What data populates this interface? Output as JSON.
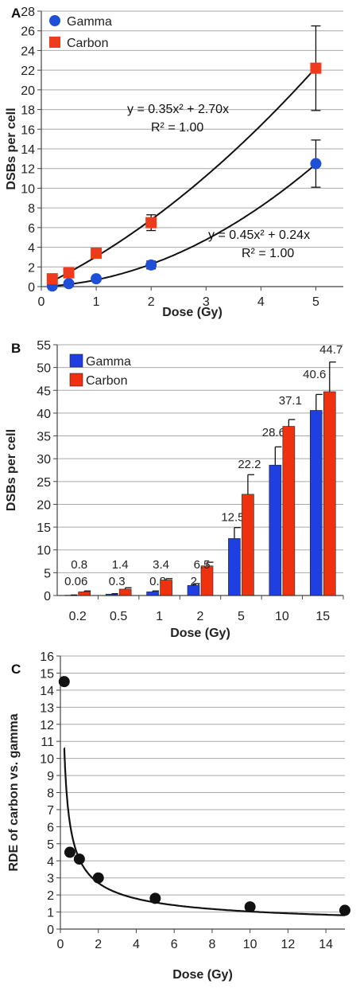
{
  "chart_data": [
    {
      "panel": "A",
      "type": "scatter",
      "xlabel": "Dose (Gy)",
      "ylabel": "DSBs per cell",
      "xlim": [
        0,
        5.5
      ],
      "ylim": [
        0,
        28
      ],
      "xticks": [
        "0",
        "1",
        "2",
        "3",
        "4",
        "5"
      ],
      "yticks": [
        "0",
        "2",
        "4",
        "6",
        "8",
        "10",
        "12",
        "14",
        "16",
        "18",
        "20",
        "22",
        "24",
        "26",
        "28"
      ],
      "grid": true,
      "legend_position": "top-left",
      "series": [
        {
          "name": "Gamma",
          "color": "#1f4fd6",
          "marker": "circle",
          "x": [
            0.2,
            0.5,
            1,
            2,
            5
          ],
          "y": [
            0.06,
            0.3,
            0.8,
            2.2,
            12.5
          ],
          "err": [
            0.1,
            0.1,
            0.2,
            0.4,
            2.4
          ],
          "fit": {
            "a": 0.45,
            "b": 0.24,
            "equation": "y = 0.45x² + 0.24x",
            "r2": "R² = 1.00"
          }
        },
        {
          "name": "Carbon",
          "color": "#ee3b1e",
          "marker": "square",
          "x": [
            0.2,
            0.5,
            1,
            2,
            5
          ],
          "y": [
            0.8,
            1.4,
            3.4,
            6.5,
            22.2
          ],
          "err": [
            0.2,
            0.3,
            0.3,
            0.8,
            4.3
          ],
          "fit": {
            "a": 0.35,
            "b": 2.7,
            "equation": "y = 0.35x² + 2.70x",
            "r2": "R² = 1.00"
          }
        }
      ]
    },
    {
      "panel": "B",
      "type": "bar",
      "xlabel": "Dose (Gy)",
      "ylabel": "DSBs per cell",
      "ylim": [
        0,
        55
      ],
      "yticks": [
        "0",
        "5",
        "10",
        "15",
        "20",
        "25",
        "30",
        "35",
        "40",
        "45",
        "50",
        "55"
      ],
      "categories": [
        "0.2",
        "0.5",
        "1",
        "2",
        "5",
        "10",
        "15"
      ],
      "grid": true,
      "legend_position": "top-left",
      "series": [
        {
          "name": "Gamma",
          "color": "#1f3fe0",
          "values": [
            0.06,
            0.3,
            0.8,
            2.2,
            12.5,
            28.6,
            40.6
          ],
          "labels": [
            "0.06",
            "0.3",
            "0.8",
            "2.2",
            "12.5",
            "28.6",
            "40.6"
          ],
          "err": [
            0.05,
            0.1,
            0.2,
            0.4,
            2.4,
            4.0,
            3.5
          ]
        },
        {
          "name": "Carbon",
          "color": "#ee3210",
          "values": [
            0.8,
            1.4,
            3.4,
            6.5,
            22.2,
            37.1,
            44.7
          ],
          "labels": [
            "0.8",
            "1.4",
            "3.4",
            "6.5",
            "22.2",
            "37.1",
            "44.7"
          ],
          "err": [
            0.2,
            0.3,
            0.3,
            0.8,
            4.3,
            1.5,
            6.5
          ]
        }
      ]
    },
    {
      "panel": "C",
      "type": "scatter",
      "xlabel": "Dose (Gy)",
      "ylabel": "RDE of carbon vs. gamma",
      "xlim": [
        0,
        15
      ],
      "ylim": [
        0,
        16
      ],
      "xticks": [
        "0",
        "2",
        "4",
        "6",
        "8",
        "10",
        "12",
        "14"
      ],
      "yticks": [
        "0",
        "1",
        "2",
        "3",
        "4",
        "5",
        "6",
        "7",
        "8",
        "9",
        "10",
        "11",
        "12",
        "13",
        "14",
        "15",
        "16"
      ],
      "grid": true,
      "series": [
        {
          "color": "#111111",
          "x": [
            0.2,
            0.5,
            1,
            2,
            5,
            10,
            15
          ],
          "y": [
            14.5,
            4.5,
            4.1,
            3.0,
            1.8,
            1.3,
            1.1
          ],
          "fit_power": {
            "a": 4.1,
            "b": -0.6,
            "x_start": 0.2
          }
        }
      ]
    }
  ]
}
